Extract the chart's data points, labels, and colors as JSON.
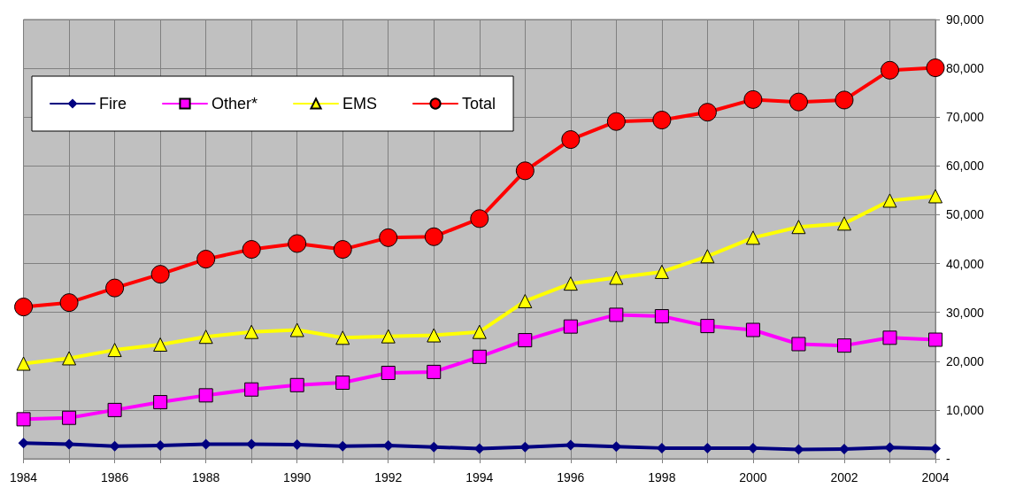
{
  "chart_data": {
    "type": "line",
    "categories": [
      "1984",
      null,
      "1986",
      null,
      "1988",
      null,
      "1990",
      null,
      "1992",
      null,
      "1994",
      null,
      "1996",
      null,
      "1998",
      null,
      "2000",
      null,
      "2002",
      null,
      "2004"
    ],
    "series": [
      {
        "name": "Fire",
        "color": "#000080",
        "marker": "diamond",
        "values": [
          3200,
          3000,
          2600,
          2700,
          3000,
          3000,
          2900,
          2600,
          2700,
          2400,
          2100,
          2400,
          2800,
          2500,
          2200,
          2200,
          2200,
          1900,
          2000,
          2300,
          2100
        ]
      },
      {
        "name": "Other*",
        "color": "#ff00ff",
        "marker": "square",
        "values": [
          8100,
          8400,
          10000,
          11600,
          13000,
          14200,
          15100,
          15600,
          17600,
          17800,
          20900,
          24300,
          27100,
          29500,
          29200,
          27200,
          26400,
          23500,
          23200,
          24800,
          24400
        ]
      },
      {
        "name": "EMS",
        "color": "#ffff00",
        "marker": "triangle",
        "values": [
          19500,
          20600,
          22300,
          23400,
          25000,
          26000,
          26400,
          24800,
          25100,
          25300,
          26000,
          32300,
          35900,
          37100,
          38300,
          41500,
          45300,
          47500,
          48200,
          52900,
          53800
        ]
      },
      {
        "name": "Total",
        "color": "#ff0000",
        "marker": "circle",
        "values": [
          31100,
          32000,
          35000,
          37800,
          40900,
          42900,
          44100,
          42900,
          45300,
          45500,
          49200,
          59000,
          65400,
          69100,
          69400,
          71000,
          73600,
          73100,
          73500,
          79600,
          80100
        ]
      }
    ],
    "ylim": [
      0,
      90000
    ],
    "yticks": [
      {
        "value": 0,
        "label": "-"
      },
      {
        "value": 10000,
        "label": "10,000"
      },
      {
        "value": 20000,
        "label": "20,000"
      },
      {
        "value": 30000,
        "label": "30,000"
      },
      {
        "value": 40000,
        "label": "40,000"
      },
      {
        "value": 50000,
        "label": "50,000"
      },
      {
        "value": 60000,
        "label": "60,000"
      },
      {
        "value": 70000,
        "label": "70,000"
      },
      {
        "value": 80000,
        "label": "80,000"
      },
      {
        "value": 90000,
        "label": "90,000"
      }
    ],
    "grid": true,
    "legend": "top left",
    "line_style": "solid"
  }
}
